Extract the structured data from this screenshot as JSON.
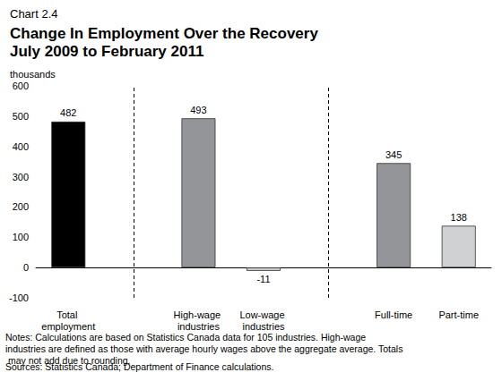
{
  "chart_data": {
    "type": "bar",
    "chart_number": "Chart 2.4",
    "title": [
      "Change In Employment Over the Recovery",
      "July 2009 to February 2011"
    ],
    "y_label": "thousands",
    "categories": [
      "Total employment",
      null,
      "High-wage industries",
      "Low-wage industries",
      null,
      "Full-time",
      "Part-time"
    ],
    "values": [
      482,
      null,
      493,
      -11,
      null,
      345,
      138
    ],
    "colors": [
      "#000000",
      "#939598",
      "#d0d1d3",
      "#939598",
      "#d0d1d3"
    ],
    "ylim": [
      -100,
      600
    ],
    "yticks": [
      -100,
      0,
      100,
      200,
      300,
      400,
      500,
      600
    ],
    "grid": false,
    "data_labels": true,
    "notes": "Notes: Calculations are based on Statistics Canada data for 105 industries. High-wage industries are defined as those with average hourly wages above the aggregate average. Totals may not add due to rounding.",
    "sources": "Sources: Statistics Canada; Department of Finance calculations."
  }
}
